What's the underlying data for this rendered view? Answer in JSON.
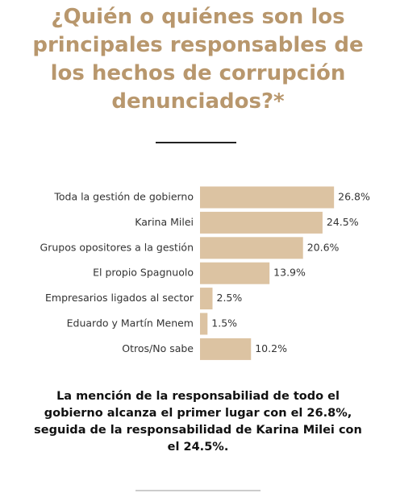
{
  "chart_data": {
    "type": "bar",
    "orientation": "horizontal",
    "title": "¿Quién o quiénes son los principales responsables de los hechos de corrupción denunciados?*",
    "categories": [
      "Toda la gestión de gobierno",
      "Karina Milei",
      "Grupos opositores a la gestión",
      "El propio Spagnuolo",
      "Empresarios ligados al sector",
      "Eduardo y Martín Menem",
      "Otros/No sabe"
    ],
    "values": [
      26.8,
      24.5,
      20.6,
      13.9,
      2.5,
      1.5,
      10.2
    ],
    "value_labels": [
      "26.8%",
      "24.5%",
      "20.6%",
      "13.9%",
      "2.5%",
      "1.5%",
      "10.2%"
    ],
    "color": "#dcc3a2",
    "caption": "La mención de la responsabiliad de todo el gobierno alcanza el primer lugar con el 26.8%, seguida de la responsabilidad de Karina Milei con el 24.5%."
  }
}
